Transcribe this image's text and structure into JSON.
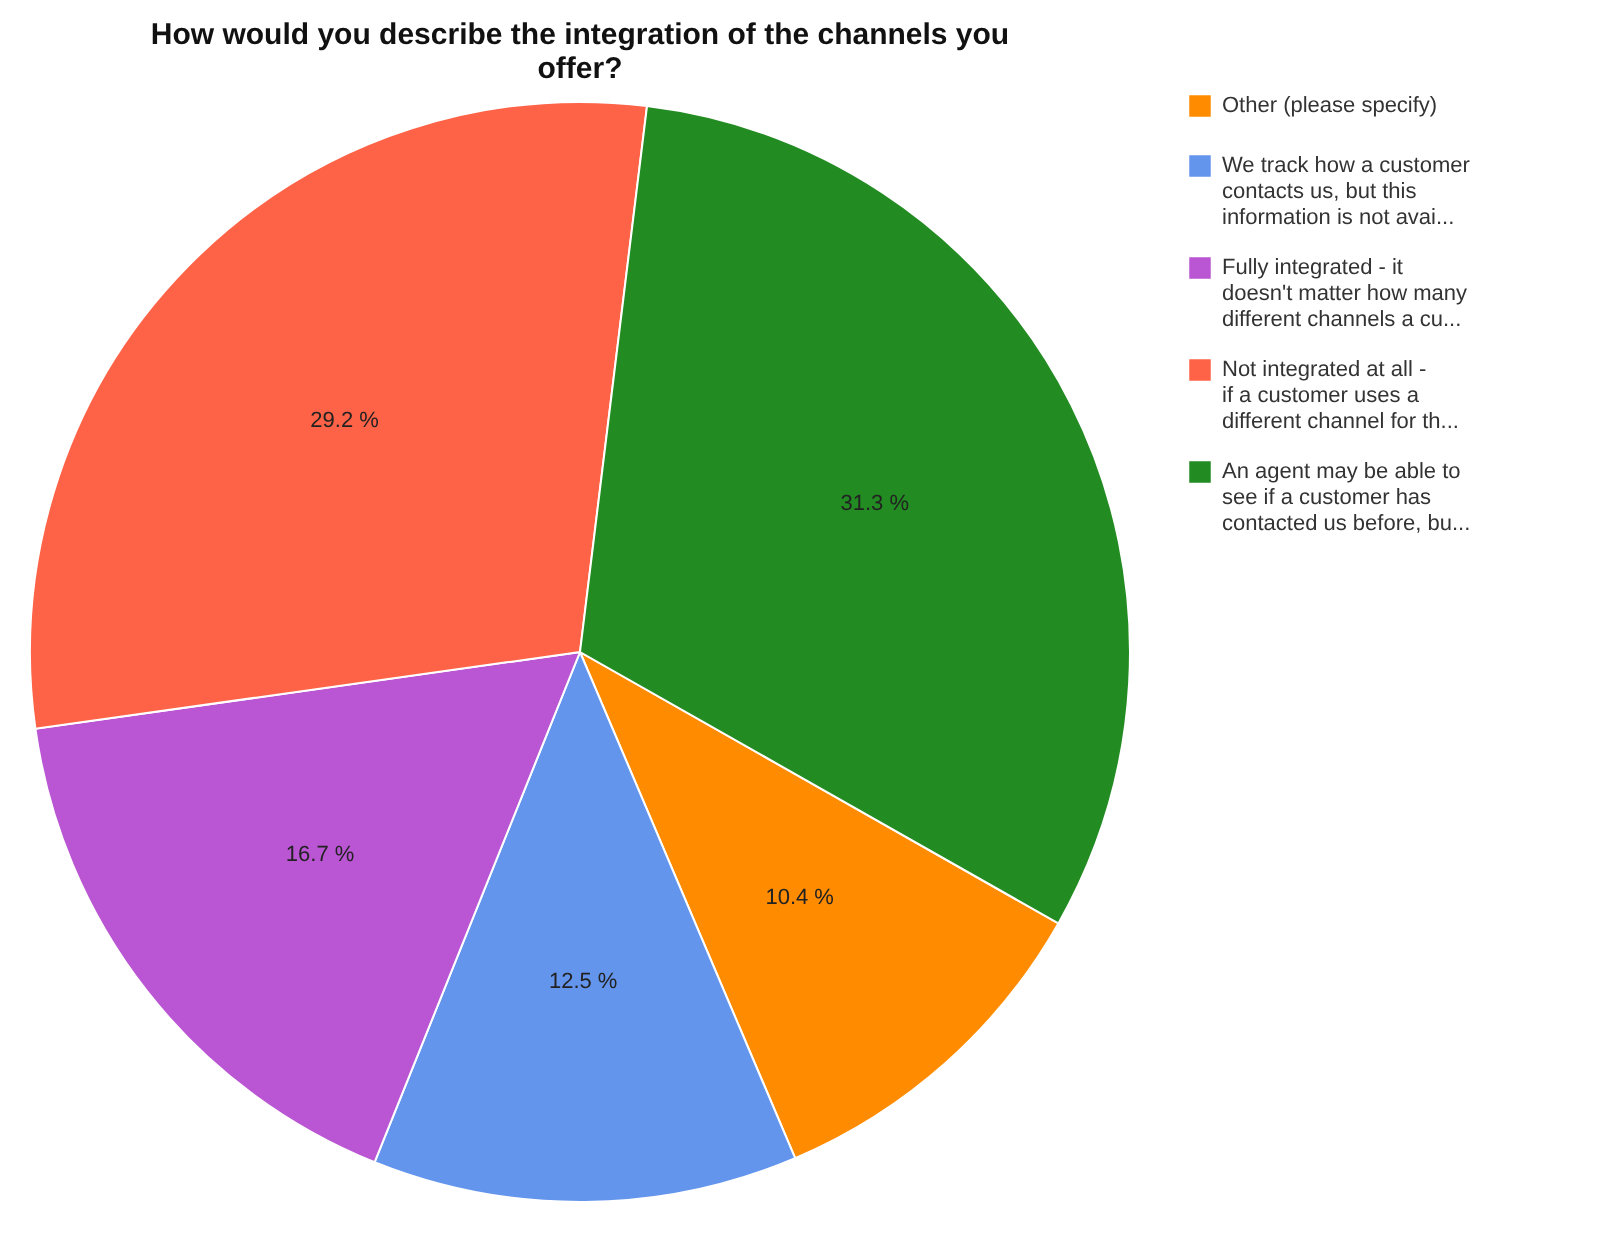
{
  "chart_data": {
    "type": "pie",
    "title": "How would you describe the integration of the channels you\noffer?",
    "categories": [
      "Other (please specify)",
      "We track how a customer\ncontacts us, but this\ninformation is not avai...",
      "Fully integrated - it\ndoesn't matter how many\ndifferent channels a cu...",
      "Not integrated at all -\nif a customer uses a\ndifferent channel for th...",
      "An agent may be able to\nsee if a customer has\ncontacted us before, bu..."
    ],
    "values": [
      10.4,
      12.5,
      16.7,
      29.2,
      31.3
    ],
    "value_labels": [
      "10.4 %",
      "12.5 %",
      "16.7 %",
      "29.2 %",
      "31.3 %"
    ],
    "colors": [
      "#ff8c00",
      "#6495ed",
      "#ba55d3",
      "#ff6347",
      "#228b22"
    ],
    "legend": "right"
  }
}
